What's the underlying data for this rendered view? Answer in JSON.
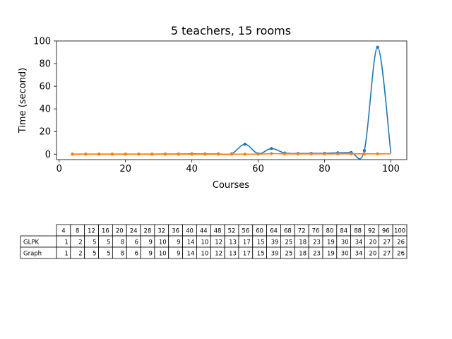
{
  "chart_data": [
    {
      "type": "line",
      "title": "5 teachers, 15 rooms",
      "xlabel": "Courses",
      "ylabel": "Time (second)",
      "xlim": [
        -0.8,
        104.8
      ],
      "ylim": [
        -4.8,
        100
      ],
      "xticks": [
        0,
        20,
        40,
        60,
        80,
        100
      ],
      "yticks": [
        0,
        20,
        40,
        60,
        80,
        100
      ],
      "grid": false,
      "colors": {
        "series_1": "#1f77b4",
        "series_2": "#ff7f0e"
      },
      "x": [
        4,
        8,
        12,
        16,
        20,
        24,
        28,
        32,
        36,
        40,
        44,
        48,
        52,
        56,
        60,
        64,
        68,
        72,
        76,
        80,
        84,
        88,
        92,
        96,
        100
      ],
      "series": [
        {
          "values": [
            0.05,
            0.05,
            0.05,
            0.06,
            0.07,
            0.08,
            0.1,
            0.12,
            0.15,
            0.3,
            0.2,
            0.25,
            0.3,
            8.8,
            0.4,
            5.0,
            1.0,
            0.6,
            0.7,
            0.8,
            1.2,
            1.5,
            3.2,
            94.5,
            0.9
          ]
        },
        {
          "values": [
            0.0,
            0.0,
            0.0,
            0.0,
            0.0,
            0.0,
            0.0,
            0.0,
            0.0,
            0.0,
            0.0,
            0.0,
            0.0,
            0.0,
            0.0,
            0.5,
            0.3,
            0.2,
            0.2,
            0.2,
            0.2,
            0.3,
            0.3,
            0.3,
            0.3
          ]
        }
      ]
    },
    {
      "type": "table",
      "columns": [
        "4",
        "8",
        "12",
        "16",
        "20",
        "24",
        "28",
        "32",
        "36",
        "40",
        "44",
        "48",
        "52",
        "56",
        "60",
        "64",
        "68",
        "72",
        "76",
        "80",
        "84",
        "88",
        "92",
        "96",
        "100"
      ],
      "rows": [
        {
          "label": "GLPK",
          "values": [
            "1",
            "2",
            "5",
            "5",
            "8",
            "6",
            "9",
            "10",
            "9",
            "14",
            "10",
            "12",
            "13",
            "17",
            "15",
            "39",
            "25",
            "18",
            "23",
            "19",
            "30",
            "34",
            "20",
            "27",
            "26"
          ]
        },
        {
          "label": "Graph",
          "values": [
            "1",
            "2",
            "5",
            "5",
            "8",
            "6",
            "9",
            "10",
            "9",
            "14",
            "10",
            "12",
            "13",
            "17",
            "15",
            "39",
            "25",
            "18",
            "23",
            "19",
            "30",
            "34",
            "20",
            "27",
            "26"
          ]
        }
      ]
    }
  ]
}
